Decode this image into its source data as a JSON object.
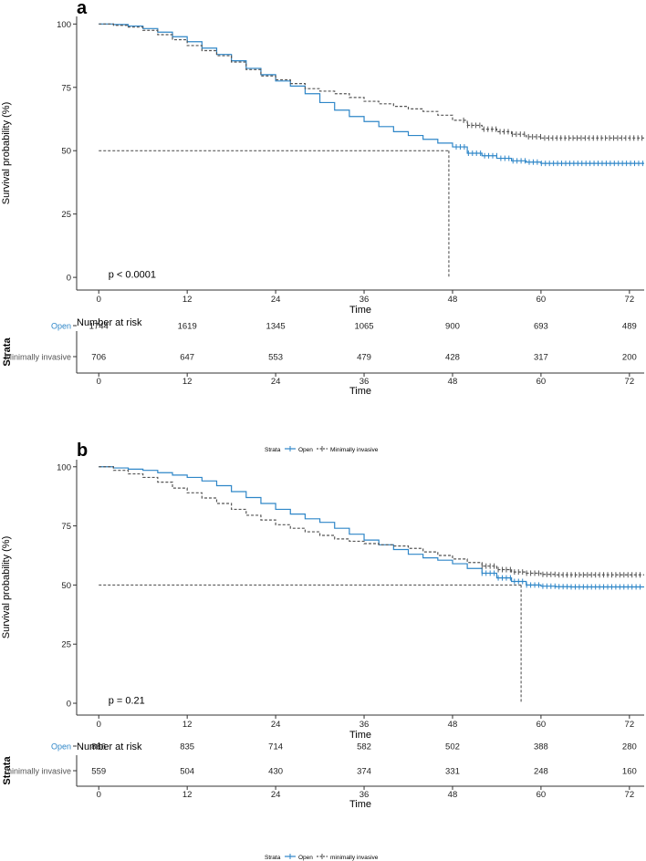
{
  "colors": {
    "open": "#2E86C8",
    "minimally": "#555555",
    "axis": "#333333",
    "text": "#222222",
    "grey_label": "#555555"
  },
  "chart_data": [
    {
      "type": "line",
      "panel_label": "a",
      "ylabel": "Survival probability (%)",
      "xlabel": "Time",
      "xlim": [
        -3,
        74
      ],
      "ylim": [
        -5,
        103
      ],
      "x_ticks": [
        0,
        12,
        24,
        36,
        48,
        60,
        72
      ],
      "x_tick_labels": [
        "0",
        "12",
        "24",
        "36",
        "48",
        "60",
        "72"
      ],
      "y_ticks": [
        0,
        25,
        50,
        75,
        100
      ],
      "y_tick_labels": [
        "0",
        "25",
        "50",
        "75",
        "100"
      ],
      "pvalue": "p < 0.0001",
      "median_line": {
        "y": 50,
        "x_end": 47.5
      },
      "series": [
        {
          "name": "Open",
          "style": "solid",
          "color_key": "open",
          "x": [
            0,
            2,
            4,
            6,
            8,
            10,
            12,
            14,
            16,
            18,
            20,
            22,
            24,
            26,
            28,
            30,
            32,
            34,
            36,
            38,
            40,
            42,
            44,
            46,
            48,
            50,
            52,
            54,
            56,
            58,
            60,
            62,
            64,
            66,
            68,
            70,
            72,
            74
          ],
          "y": [
            100,
            99.8,
            99.2,
            98.2,
            96.8,
            95,
            93,
            90.5,
            88,
            85.5,
            82.5,
            80,
            77.5,
            75.5,
            72.5,
            69,
            66,
            63.5,
            61.5,
            59.5,
            57.5,
            56,
            54.5,
            53,
            51.5,
            49,
            48,
            47,
            46,
            45.5,
            45,
            45,
            45,
            45,
            45,
            45,
            45,
            45
          ],
          "censor_from": 48.5
        },
        {
          "name": "Minimally invasive",
          "style": "dashed",
          "color_key": "minimally",
          "x": [
            0,
            2,
            4,
            6,
            8,
            10,
            12,
            14,
            16,
            18,
            20,
            22,
            24,
            26,
            28,
            30,
            32,
            34,
            36,
            38,
            40,
            42,
            44,
            46,
            48,
            50,
            52,
            54,
            56,
            58,
            60,
            62,
            64,
            66,
            68,
            70,
            72,
            74
          ],
          "y": [
            100,
            99.5,
            98.8,
            97.5,
            95.8,
            93.8,
            91.5,
            89.5,
            87.5,
            85,
            82,
            79.5,
            78,
            76.5,
            74.5,
            73.5,
            72.5,
            71,
            69.5,
            68.5,
            67.5,
            66.5,
            65.5,
            64,
            62,
            60,
            58.5,
            57.5,
            56.5,
            55.5,
            55,
            55,
            55,
            55,
            55,
            55,
            55,
            55
          ],
          "censor_from": 49.5
        }
      ],
      "risk_table": {
        "title": "Number at risk",
        "axis_title": "Strata",
        "xlabel": "Time",
        "rows": [
          {
            "label": "Open",
            "color_key": "open",
            "values": [
              "1744",
              "1619",
              "1345",
              "1065",
              "900",
              "693",
              "489"
            ]
          },
          {
            "label": "Minimally invasive",
            "color_key": "grey_label",
            "values": [
              "706",
              "647",
              "553",
              "479",
              "428",
              "317",
              "200"
            ]
          }
        ]
      },
      "legend": {
        "title": "Strata",
        "items": [
          "Open",
          "Minimally invasive"
        ],
        "position": "bottom"
      }
    },
    {
      "type": "line",
      "panel_label": "b",
      "ylabel": "Survival probability (%)",
      "xlabel": "Time",
      "xlim": [
        -3,
        74
      ],
      "ylim": [
        -5,
        103
      ],
      "x_ticks": [
        0,
        12,
        24,
        36,
        48,
        60,
        72
      ],
      "x_tick_labels": [
        "0",
        "12",
        "24",
        "36",
        "48",
        "60",
        "72"
      ],
      "y_ticks": [
        0,
        25,
        50,
        75,
        100
      ],
      "y_tick_labels": [
        "0",
        "25",
        "50",
        "75",
        "100"
      ],
      "pvalue": "p = 0.21",
      "median_line": {
        "y": 50,
        "x_end": 57.3
      },
      "series": [
        {
          "name": "Open",
          "style": "solid",
          "color_key": "open",
          "x": [
            0,
            2,
            4,
            6,
            8,
            10,
            12,
            14,
            16,
            18,
            20,
            22,
            24,
            26,
            28,
            30,
            32,
            34,
            36,
            38,
            40,
            42,
            44,
            46,
            48,
            50,
            52,
            54,
            56,
            58,
            60,
            62,
            64,
            66,
            68,
            70,
            72,
            74
          ],
          "y": [
            100,
            99.5,
            99,
            98.5,
            97.5,
            96.5,
            95.5,
            94,
            92,
            89.5,
            87,
            84.5,
            82,
            80,
            78,
            76.5,
            74,
            71.5,
            69,
            67,
            65,
            63,
            61.5,
            60.5,
            59,
            57,
            55,
            53,
            51.5,
            50,
            49.5,
            49.3,
            49.2,
            49.2,
            49.2,
            49.2,
            49.2,
            49.2
          ],
          "censor_from": 52
        },
        {
          "name": "minimally invasive",
          "style": "dashed",
          "color_key": "minimally",
          "x": [
            0,
            2,
            4,
            6,
            8,
            10,
            12,
            14,
            16,
            18,
            20,
            22,
            24,
            26,
            28,
            30,
            32,
            34,
            36,
            38,
            40,
            42,
            44,
            46,
            48,
            50,
            52,
            54,
            56,
            58,
            60,
            62,
            64,
            66,
            68,
            70,
            72,
            74
          ],
          "y": [
            100,
            98.5,
            97,
            95.5,
            93.5,
            91,
            89,
            86.8,
            84.5,
            82,
            79.5,
            77.5,
            75.5,
            74,
            72.5,
            71,
            69.5,
            68.5,
            67.5,
            67,
            66.5,
            65.5,
            64,
            62.5,
            61,
            59.5,
            58,
            56.5,
            55.5,
            55,
            54.5,
            54.3,
            54.3,
            54.3,
            54.3,
            54.3,
            54.3,
            54.3
          ],
          "censor_from": 52
        }
      ],
      "risk_table": {
        "title": "Number at risk",
        "axis_title": "Strata",
        "xlabel": "Time",
        "rows": [
          {
            "label": "Open",
            "color_key": "open",
            "values": [
              "886",
              "835",
              "714",
              "582",
              "502",
              "388",
              "280"
            ]
          },
          {
            "label": "minimally invasive",
            "color_key": "grey_label",
            "values": [
              "559",
              "504",
              "430",
              "374",
              "331",
              "248",
              "160"
            ]
          }
        ]
      },
      "legend": {
        "title": "Strata",
        "items": [
          "Open",
          "minimally invasive"
        ],
        "position": "bottom"
      }
    }
  ]
}
